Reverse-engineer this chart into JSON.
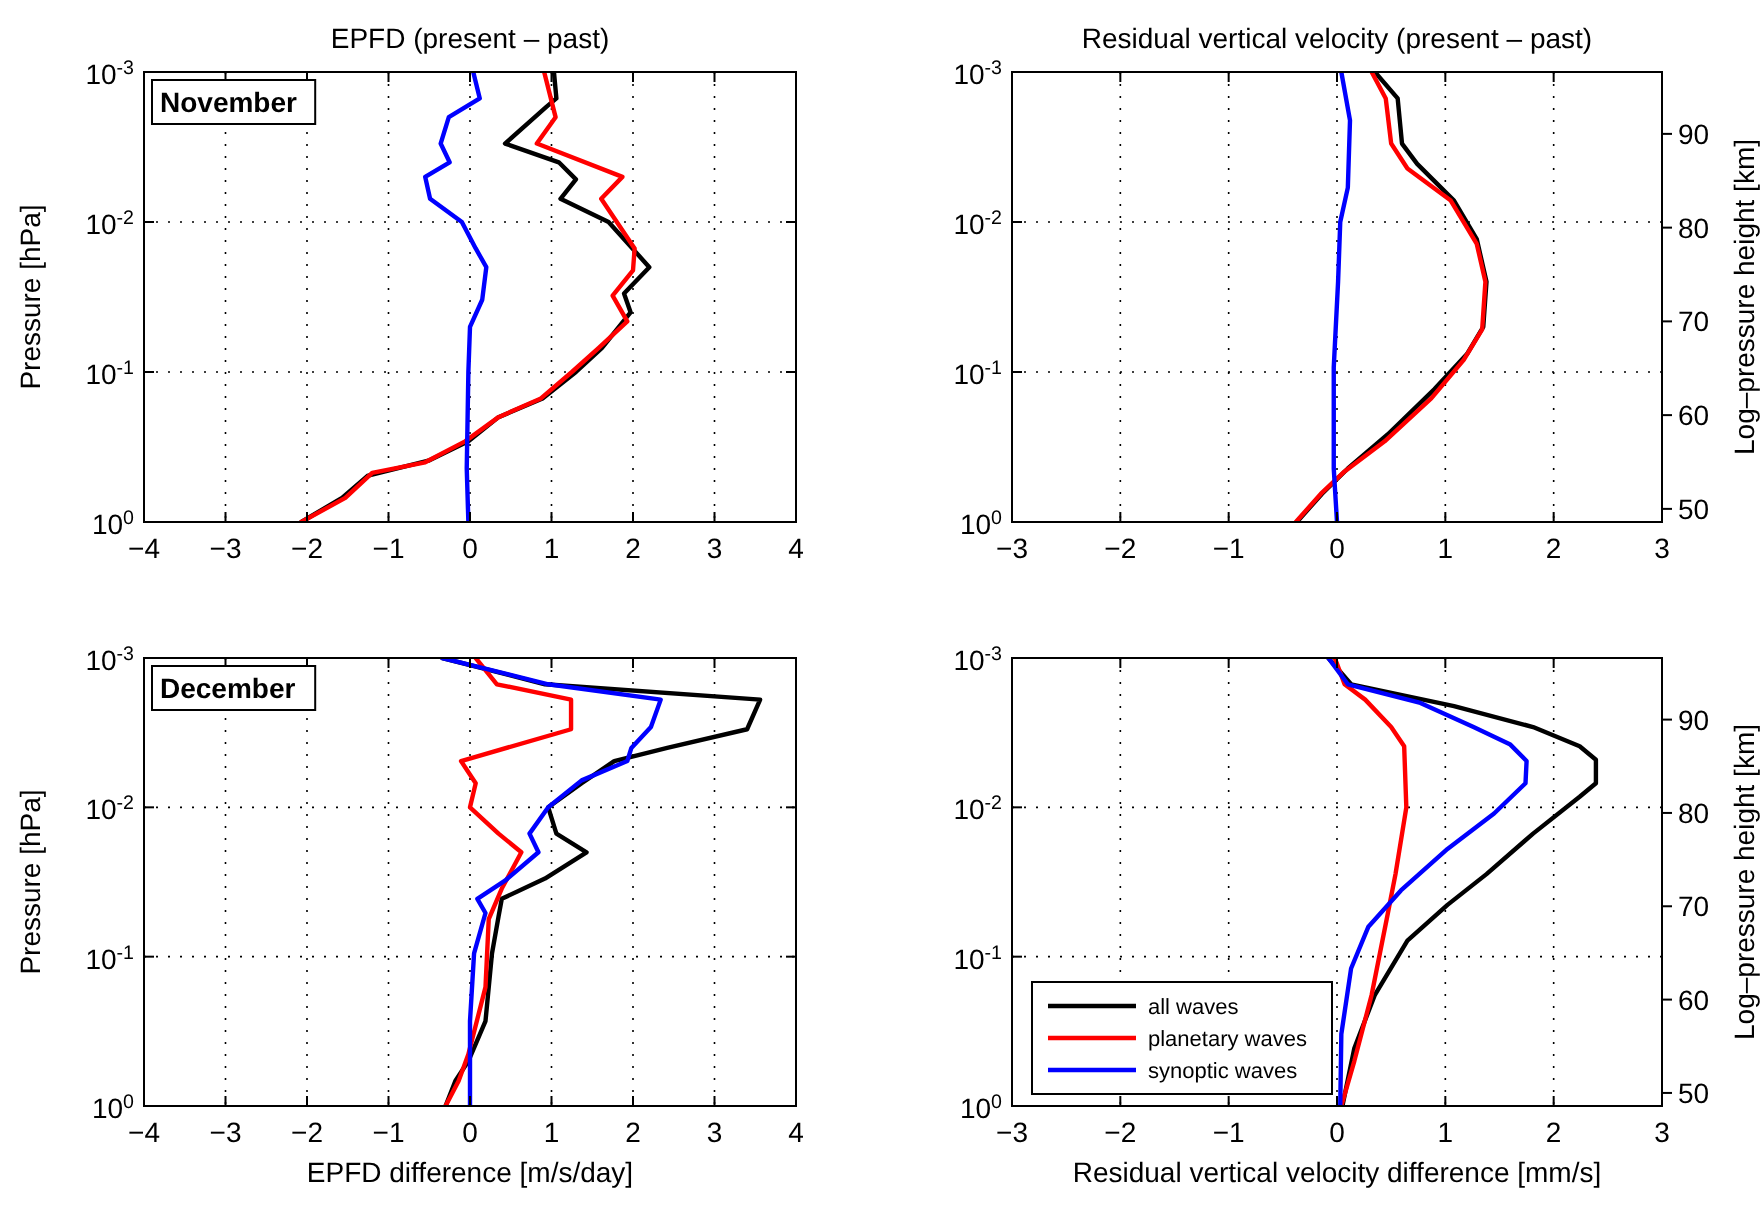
{
  "chart_data": [
    {
      "type": "line",
      "title": "EPFD (present – past)",
      "ylabel": "Pressure [hPa]",
      "xlim": [
        -4,
        4
      ],
      "xticks": [
        {
          "value": -4,
          "label": "−4"
        },
        {
          "value": -3,
          "label": "−3"
        },
        {
          "value": -2,
          "label": "−2"
        },
        {
          "value": -1,
          "label": "−1"
        },
        0,
        1,
        2,
        3,
        4
      ],
      "ylim": [
        1,
        0.001
      ],
      "yticks": [
        {
          "value": 1,
          "label": "10$^{0}$"
        },
        {
          "value": 0.1,
          "label": "10$^{-1}$"
        },
        {
          "value": 0.01,
          "label": "10$^{-2}$"
        },
        {
          "value": 0.001,
          "label": "10$^{-3}$"
        }
      ],
      "log": "y",
      "grid": true,
      "legend": false,
      "annotations": [
        "November"
      ],
      "series": [
        {
          "color": "#000000",
          "x": [
            1.03,
            1.06,
            0.94,
            0.43,
            1.09,
            1.3,
            1.11,
            1.7,
            2.2,
            1.89,
            1.97,
            1.62,
            1.3,
            0.89,
            0.35,
            -0.02,
            -0.51,
            -1.25,
            -1.57,
            -2.07
          ],
          "values": [
            0.001,
            0.0015,
            0.0017,
            0.003,
            0.004,
            0.0052,
            0.007,
            0.01,
            0.02,
            0.03,
            0.04,
            0.069,
            0.1,
            0.15,
            0.2,
            0.29,
            0.39,
            0.49,
            0.69,
            1
          ]
        },
        {
          "color": "#ff0000",
          "x": [
            0.91,
            1.05,
            0.82,
            1.87,
            1.61,
            2.02,
            2.0,
            1.75,
            1.93,
            1.58,
            1.25,
            0.87,
            0.35,
            -0.06,
            -0.55,
            -1.2,
            -1.53,
            -2.07
          ],
          "values": [
            0.001,
            0.002,
            0.003,
            0.005,
            0.007,
            0.015,
            0.021,
            0.031,
            0.046,
            0.069,
            0.1,
            0.15,
            0.2,
            0.29,
            0.4,
            0.47,
            0.69,
            1
          ]
        },
        {
          "color": "#0000ff",
          "x": [
            0.04,
            0.12,
            -0.26,
            -0.36,
            -0.25,
            -0.55,
            -0.49,
            -0.1,
            0.07,
            0.2,
            0.15,
            0,
            -0.02,
            -0.04,
            -0.02
          ],
          "values": [
            0.001,
            0.0015,
            0.002,
            0.003,
            0.004,
            0.005,
            0.007,
            0.01,
            0.015,
            0.02,
            0.033,
            0.05,
            0.1,
            0.44,
            1
          ]
        }
      ]
    },
    {
      "type": "line",
      "title": "Residual vertical velocity (present – past)",
      "y2label": "Log–pressure height [km]",
      "xlim": [
        -3,
        3
      ],
      "xticks": [
        {
          "value": -3,
          "label": "−3"
        },
        {
          "value": -2,
          "label": "−2"
        },
        {
          "value": -1,
          "label": "−1"
        },
        0,
        1,
        2,
        3
      ],
      "ylim": [
        1,
        0.001
      ],
      "yticks": [
        {
          "value": 1,
          "label": "10$^{0}$"
        },
        {
          "value": 0.1,
          "label": "10$^{-1}$"
        },
        {
          "value": 0.01,
          "label": "10$^{-2}$"
        },
        {
          "value": 0.001,
          "label": "10$^{-3}$"
        }
      ],
      "y2lim": [
        48.6,
        96.6
      ],
      "y2ticks": [
        50,
        60,
        70,
        80,
        90
      ],
      "log": "y",
      "grid": true,
      "legend": false,
      "series": [
        {
          "color": "#000000",
          "x": [
            0.35,
            0.56,
            0.6,
            0.74,
            1.08,
            1.29,
            1.38,
            1.35,
            1.2,
            0.9,
            0.47,
            0.1,
            -0.14,
            -0.37
          ],
          "values": [
            0.001,
            0.0015,
            0.003,
            0.0041,
            0.0072,
            0.013,
            0.025,
            0.05,
            0.076,
            0.13,
            0.26,
            0.44,
            0.65,
            1
          ]
        },
        {
          "color": "#ff0000",
          "x": [
            0.32,
            0.45,
            0.5,
            0.65,
            1.05,
            1.29,
            1.37,
            1.34,
            1.17,
            0.87,
            0.44,
            0.07,
            -0.15,
            -0.38
          ],
          "values": [
            0.001,
            0.0015,
            0.003,
            0.0044,
            0.0072,
            0.014,
            0.025,
            0.052,
            0.083,
            0.15,
            0.29,
            0.46,
            0.65,
            1
          ]
        },
        {
          "color": "#0000ff",
          "x": [
            0.04,
            0.12,
            0.1,
            0.03,
            0.01,
            -0.03,
            -0.03,
            0
          ],
          "values": [
            0.001,
            0.0021,
            0.0059,
            0.01,
            0.025,
            0.093,
            0.44,
            1
          ]
        }
      ]
    },
    {
      "type": "line",
      "xlabel": "EPFD difference [m/s/day]",
      "ylabel": "Pressure [hPa]",
      "xlim": [
        -4,
        4
      ],
      "xticks": [
        {
          "value": -4,
          "label": "−4"
        },
        {
          "value": -3,
          "label": "−3"
        },
        {
          "value": -2,
          "label": "−2"
        },
        {
          "value": -1,
          "label": "−1"
        },
        0,
        1,
        2,
        3,
        4
      ],
      "ylim": [
        1,
        0.001
      ],
      "yticks": [
        {
          "value": 1,
          "label": "10$^{0}$"
        },
        {
          "value": 0.1,
          "label": "10$^{-1}$"
        },
        {
          "value": 0.01,
          "label": "10$^{-2}$"
        },
        {
          "value": 0.001,
          "label": "10$^{-3}$"
        }
      ],
      "log": "y",
      "grid": true,
      "legend": false,
      "annotations": [
        "December"
      ],
      "series": [
        {
          "color": "#000000",
          "x": [
            -0.34,
            0.92,
            3.56,
            3.4,
            2.42,
            1.77,
            1.37,
            0.96,
            1.06,
            1.43,
            0.92,
            0.39,
            0.35,
            0.27,
            0.19,
            -0.02,
            -0.18,
            -0.3
          ],
          "values": [
            0.001,
            0.0015,
            0.0019,
            0.003,
            0.004,
            0.0049,
            0.0069,
            0.01,
            0.015,
            0.02,
            0.03,
            0.041,
            0.054,
            0.095,
            0.27,
            0.5,
            0.68,
            1
          ]
        },
        {
          "color": "#ff0000",
          "x": [
            0.07,
            0.33,
            1.24,
            1.24,
            -0.11,
            0.07,
            0,
            0.35,
            0.63,
            0.39,
            0.23,
            0.19,
            -0.02,
            -0.14,
            -0.3
          ],
          "values": [
            0.001,
            0.0015,
            0.0019,
            0.003,
            0.0049,
            0.0069,
            0.01,
            0.015,
            0.02,
            0.035,
            0.056,
            0.16,
            0.45,
            0.68,
            1
          ]
        },
        {
          "color": "#0000ff",
          "x": [
            -0.34,
            0.96,
            2.34,
            2.22,
            1.98,
            1.93,
            1.37,
            0.96,
            0.73,
            0.84,
            0.43,
            0.09,
            0.19,
            0.05,
            0,
            0
          ],
          "values": [
            0.001,
            0.0015,
            0.0019,
            0.0029,
            0.004,
            0.0049,
            0.0066,
            0.01,
            0.015,
            0.02,
            0.031,
            0.041,
            0.051,
            0.095,
            0.27,
            1
          ]
        }
      ]
    },
    {
      "type": "line",
      "xlabel": "Residual vertical velocity difference [mm/s]",
      "y2label": "Log–pressure height [km]",
      "xlim": [
        -3,
        3
      ],
      "xticks": [
        {
          "value": -3,
          "label": "−3"
        },
        {
          "value": -2,
          "label": "−2"
        },
        {
          "value": -1,
          "label": "−1"
        },
        0,
        1,
        2,
        3
      ],
      "ylim": [
        1,
        0.001
      ],
      "yticks": [
        {
          "value": 1,
          "label": "10$^{0}$"
        },
        {
          "value": 0.1,
          "label": "10$^{-1}$"
        },
        {
          "value": 0.01,
          "label": "10$^{-2}$"
        },
        {
          "value": 0.001,
          "label": "10$^{-3}$"
        }
      ],
      "y2lim": [
        48.6,
        96.6
      ],
      "y2ticks": [
        50,
        60,
        70,
        80,
        90
      ],
      "log": "y",
      "grid": true,
      "legend": "bottom left",
      "series": [
        {
          "name": "all waves",
          "color": "#000000",
          "x": [
            -0.08,
            0.13,
            1.08,
            1.81,
            2.24,
            2.39,
            2.39,
            2.24,
            1.81,
            1.38,
            1.02,
            0.65,
            0.35,
            0.16,
            0.05
          ],
          "values": [
            0.001,
            0.0015,
            0.0021,
            0.0029,
            0.0039,
            0.0048,
            0.0069,
            0.0085,
            0.015,
            0.028,
            0.045,
            0.078,
            0.18,
            0.41,
            1
          ]
        },
        {
          "name": "planetary waves",
          "color": "#ff0000",
          "x": [
            -0.02,
            0.07,
            0.26,
            0.5,
            0.62,
            0.64,
            0.54,
            0.47,
            0.32,
            0.16,
            0.04
          ],
          "values": [
            0.001,
            0.0015,
            0.0019,
            0.0029,
            0.0039,
            0.01,
            0.028,
            0.051,
            0.18,
            0.5,
            1
          ]
        },
        {
          "name": "synoptic waves",
          "color": "#0000ff",
          "x": [
            -0.08,
            0.1,
            0.77,
            1.26,
            1.6,
            1.75,
            1.74,
            1.45,
            1.02,
            0.59,
            0.29,
            0.13,
            0.04,
            0.03
          ],
          "values": [
            0.001,
            0.0015,
            0.002,
            0.0029,
            0.0038,
            0.0049,
            0.0069,
            0.011,
            0.019,
            0.036,
            0.063,
            0.12,
            0.33,
            1
          ]
        }
      ]
    }
  ]
}
